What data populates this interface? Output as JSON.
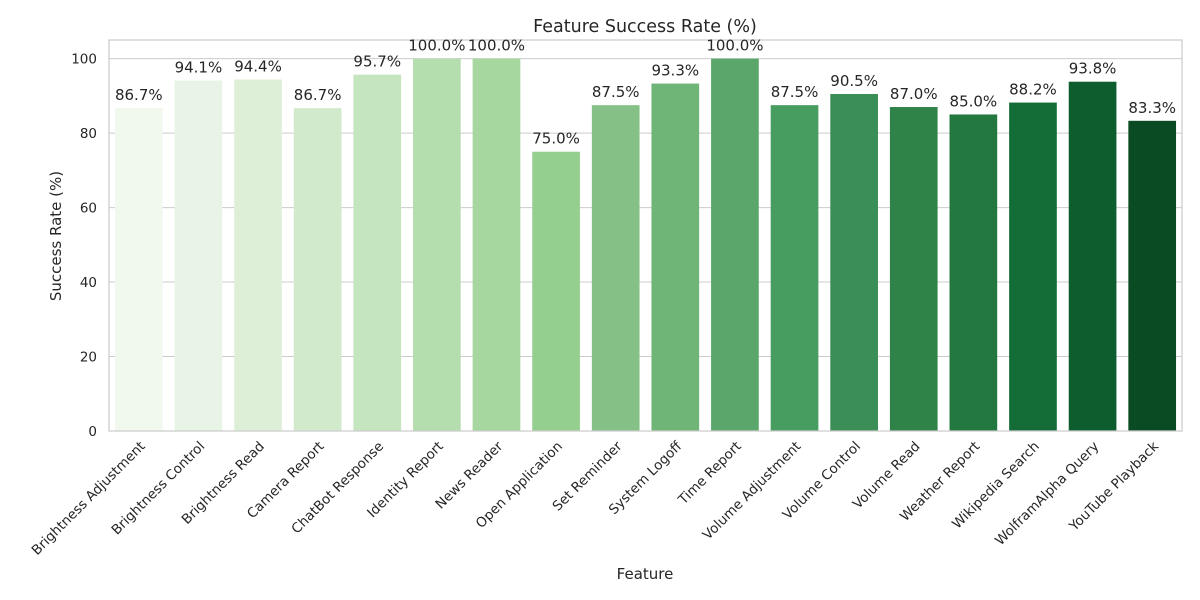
{
  "chart_data": {
    "type": "bar",
    "title": "Feature Success Rate (%)",
    "xlabel": "Feature",
    "ylabel": "Success Rate (%)",
    "ylim": [
      0,
      105
    ],
    "yticks": [
      0,
      20,
      40,
      60,
      80,
      100
    ],
    "grid": "y",
    "categories": [
      "Brightness Adjustment",
      "Brightness Control",
      "Brightness Read",
      "Camera Report",
      "ChatBot Response",
      "Identity Report",
      "News Reader",
      "Open Application",
      "Set Reminder",
      "System Logoff",
      "Time Report",
      "Volume Adjustment",
      "Volume Control",
      "Volume Read",
      "Weather Report",
      "Wikipedia Search",
      "WolframAlpha Query",
      "YouTube Playback"
    ],
    "values": [
      86.7,
      94.1,
      94.4,
      86.7,
      95.7,
      100.0,
      100.0,
      75.0,
      87.5,
      93.3,
      100.0,
      87.5,
      90.5,
      87.0,
      85.0,
      88.2,
      93.8,
      83.3
    ],
    "data_labels": [
      "86.7%",
      "94.1%",
      "94.4%",
      "86.7%",
      "95.7%",
      "100.0%",
      "100.0%",
      "75.0%",
      "87.5%",
      "93.3%",
      "100.0%",
      "87.5%",
      "90.5%",
      "87.0%",
      "85.0%",
      "88.2%",
      "93.8%",
      "83.3%"
    ],
    "palette": "Greens",
    "colors": [
      "#f1f8ee",
      "#e8f4e5",
      "#deefd8",
      "#d1eacb",
      "#c4e5be",
      "#b5deae",
      "#a6d79e",
      "#94cf8f",
      "#85c187",
      "#70b578",
      "#5ba66b",
      "#479c5f",
      "#3a8e56",
      "#2f8349",
      "#22783f",
      "#146d37",
      "#0d5d2e",
      "#0a4b24"
    ]
  }
}
